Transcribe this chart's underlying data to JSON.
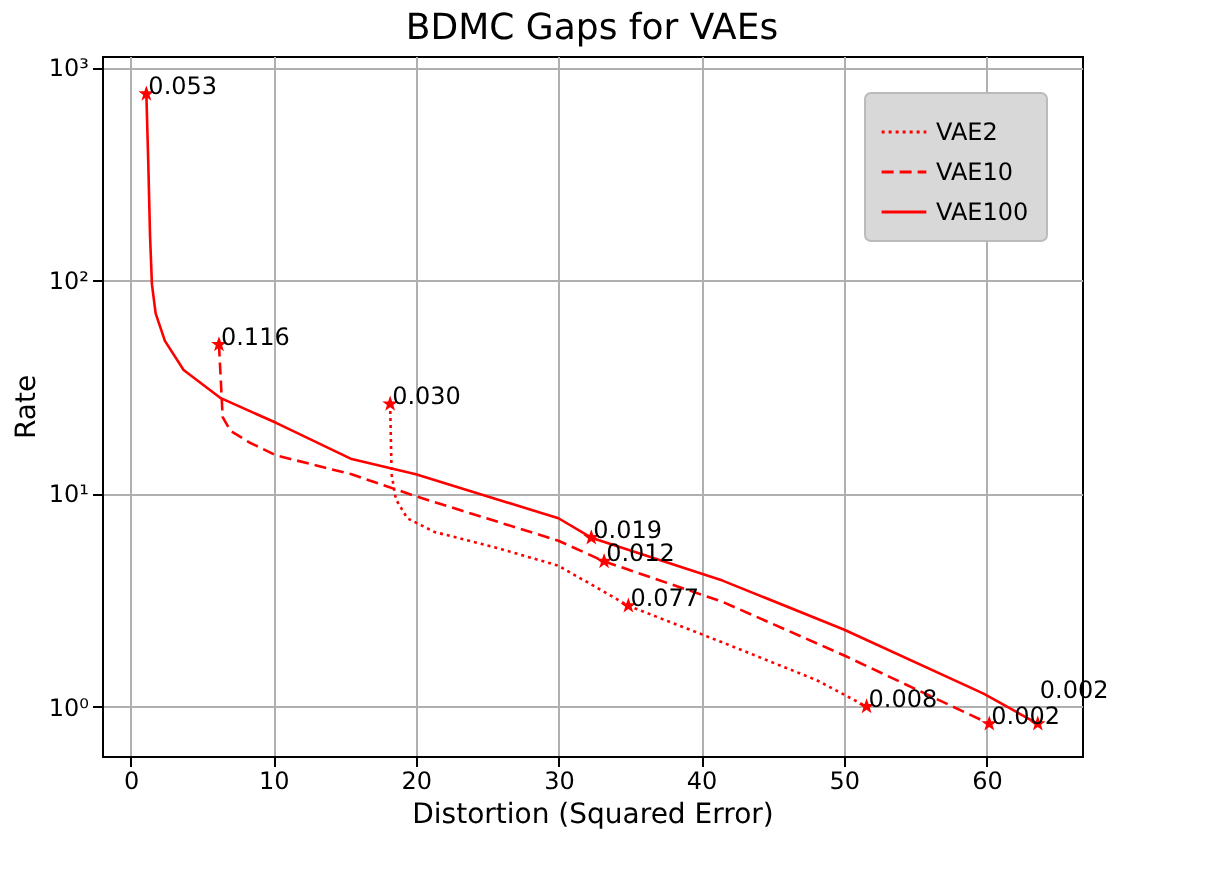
{
  "chart_data": {
    "type": "line",
    "title": "BDMC Gaps for VAEs",
    "xlabel": "Distortion (Squared Error)",
    "ylabel": "Rate",
    "log": "y",
    "grid": true,
    "legend": "top right",
    "xlim": [
      -2,
      66.7
    ],
    "xticks": [
      0,
      10,
      20,
      30,
      40,
      50,
      60
    ],
    "ylim": [
      0.586,
      1130
    ],
    "yticks": [
      {
        "value": 1,
        "label": "10⁰"
      },
      {
        "value": 10,
        "label": "10¹"
      },
      {
        "value": 100,
        "label": "10²"
      },
      {
        "value": 1000,
        "label": "10³"
      }
    ],
    "series": [
      {
        "name": "VAE2",
        "color": "#ff0000",
        "line_style": "dotted",
        "marker": "none",
        "x": [
          18.2,
          18.3,
          18.6,
          19.4,
          21.3,
          25.9,
          30,
          34.9,
          41.5,
          48.1,
          51.6
        ],
        "values": [
          26.3,
          12.3,
          9.4,
          7.65,
          6.6,
          5.5,
          4.58,
          2.97,
          2.0,
          1.33,
          1.0
        ]
      },
      {
        "name": "VAE10",
        "color": "#ff0000",
        "line_style": "dashed",
        "marker": "none",
        "x": [
          6.2,
          6.46,
          7.0,
          8.3,
          10.2,
          15.5,
          20,
          30,
          33.2,
          41.5,
          50,
          60.2
        ],
        "values": [
          50,
          22.8,
          19.7,
          17.4,
          15.1,
          12.3,
          9.7,
          6.0,
          4.8,
          3.1,
          1.74,
          0.83
        ]
      },
      {
        "name": "VAE100",
        "color": "#ff0000",
        "line_style": "solid",
        "marker": "none",
        "x": [
          1.11,
          1.24,
          1.37,
          1.5,
          1.76,
          2.41,
          3.72,
          6.33,
          10.24,
          15.5,
          20,
          30,
          32.3,
          41.5,
          50,
          59.8,
          63.6
        ],
        "values": [
          750,
          365,
          160,
          96,
          70,
          52,
          38,
          28,
          21.4,
          14.5,
          12.3,
          7.65,
          6.2,
          3.9,
          2.3,
          1.15,
          0.83
        ]
      },
      {
        "type": "scatter",
        "color": "#ff0000",
        "marker": "star",
        "x": [
          1.11,
          6.2,
          18.2,
          32.3,
          33.2,
          34.9,
          51.6,
          60.2,
          63.6
        ],
        "values": [
          750,
          50,
          26.3,
          6.2,
          4.8,
          2.97,
          1.0,
          0.83,
          0.83
        ]
      }
    ],
    "annotations": [
      {
        "text": "0.053",
        "x": 1.11,
        "y": 750
      },
      {
        "text": "0.116",
        "x": 6.2,
        "y": 50
      },
      {
        "text": "0.030",
        "x": 18.2,
        "y": 26.3
      },
      {
        "text": "0.019",
        "x": 32.3,
        "y": 6.2
      },
      {
        "text": "0.012",
        "x": 33.2,
        "y": 4.8
      },
      {
        "text": "0.077",
        "x": 34.9,
        "y": 2.97
      },
      {
        "text": "0.008",
        "x": 51.6,
        "y": 1.0
      },
      {
        "text": "0.002",
        "x": 60.2,
        "y": 0.83
      },
      {
        "text": "0.002",
        "x": 63.6,
        "y": 0.83
      }
    ]
  }
}
